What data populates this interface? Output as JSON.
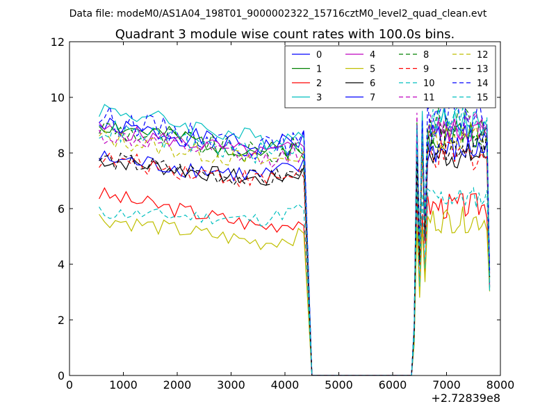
{
  "suptitle": "Data file: modeM0/AS1A04_198T01_9000002322_15716cztM0_level2_quad_clean.evt",
  "chart_data": {
    "type": "line",
    "title": "Quadrant 3 module wise count rates with 100.0s bins.",
    "xlabel": "",
    "ylabel": "",
    "x_offset_label": "+2.72839e8",
    "xlim": [
      0,
      8000
    ],
    "ylim": [
      0,
      12
    ],
    "xticks": [
      0,
      1000,
      2000,
      3000,
      4000,
      5000,
      6000,
      7000,
      8000
    ],
    "yticks": [
      0,
      2,
      4,
      6,
      8,
      10,
      12
    ],
    "grid": false,
    "legend": {
      "placement": "top-right",
      "columns": 4
    },
    "x_segments": {
      "segment1": {
        "start": 550,
        "step": 100,
        "count": 39
      },
      "drop": [
        4450,
        4550
      ],
      "zero_span": [
        4550,
        6350
      ],
      "segment2": {
        "start": 6350,
        "step": 50,
        "count": 29
      }
    },
    "series": [
      {
        "name": "0",
        "color": "#0000ff",
        "dash": "solid",
        "level1": 8.5,
        "level2": 8.6,
        "trend": -0.6,
        "amp": 0.35,
        "seed": 1
      },
      {
        "name": "1",
        "color": "#008000",
        "dash": "solid",
        "level1": 8.4,
        "level2": 8.7,
        "trend": -0.8,
        "amp": 0.35,
        "seed": 2
      },
      {
        "name": "2",
        "color": "#ff0000",
        "dash": "solid",
        "level1": 5.8,
        "level2": 6.1,
        "trend": -0.9,
        "amp": 0.3,
        "seed": 3
      },
      {
        "name": "3",
        "color": "#00bfbf",
        "dash": "solid",
        "level1": 8.9,
        "level2": 9.1,
        "trend": -0.9,
        "amp": 0.35,
        "seed": 4
      },
      {
        "name": "4",
        "color": "#bf00bf",
        "dash": "solid",
        "level1": 8.3,
        "level2": 8.8,
        "trend": -0.7,
        "amp": 0.3,
        "seed": 5
      },
      {
        "name": "5",
        "color": "#bfbf00",
        "dash": "solid",
        "level1": 5.1,
        "level2": 5.6,
        "trend": -0.7,
        "amp": 0.3,
        "seed": 6
      },
      {
        "name": "6",
        "color": "#000000",
        "dash": "solid",
        "level1": 7.3,
        "level2": 7.9,
        "trend": -0.6,
        "amp": 0.3,
        "seed": 7
      },
      {
        "name": "7",
        "color": "#0000ff",
        "dash": "solid",
        "level1": 7.4,
        "level2": 8.1,
        "trend": -0.5,
        "amp": 0.35,
        "seed": 8
      },
      {
        "name": "8",
        "color": "#008000",
        "dash": "dashed",
        "level1": 8.3,
        "level2": 9.0,
        "trend": -0.8,
        "amp": 0.45,
        "seed": 9
      },
      {
        "name": "9",
        "color": "#ff0000",
        "dash": "dashed",
        "level1": 7.3,
        "level2": 7.9,
        "trend": -0.6,
        "amp": 0.35,
        "seed": 10
      },
      {
        "name": "10",
        "color": "#00bfbf",
        "dash": "dashed",
        "level1": 5.7,
        "level2": 6.4,
        "trend": -0.2,
        "amp": 0.25,
        "seed": 11
      },
      {
        "name": "11",
        "color": "#bf00bf",
        "dash": "dashed",
        "level1": 8.1,
        "level2": 9.0,
        "trend": -0.7,
        "amp": 0.35,
        "seed": 12
      },
      {
        "name": "12",
        "color": "#bfbf00",
        "dash": "dashed",
        "level1": 8.0,
        "level2": 8.6,
        "trend": -0.7,
        "amp": 0.35,
        "seed": 13
      },
      {
        "name": "13",
        "color": "#000000",
        "dash": "dashed",
        "level1": 7.3,
        "level2": 8.3,
        "trend": -0.6,
        "amp": 0.35,
        "seed": 14
      },
      {
        "name": "14",
        "color": "#0000ff",
        "dash": "dashed",
        "level1": 8.6,
        "level2": 9.3,
        "trend": -0.9,
        "amp": 0.45,
        "seed": 15
      },
      {
        "name": "15",
        "color": "#00bfbf",
        "dash": "dashed",
        "level1": 8.3,
        "level2": 9.2,
        "trend": -0.7,
        "amp": 0.4,
        "seed": 16
      }
    ]
  }
}
